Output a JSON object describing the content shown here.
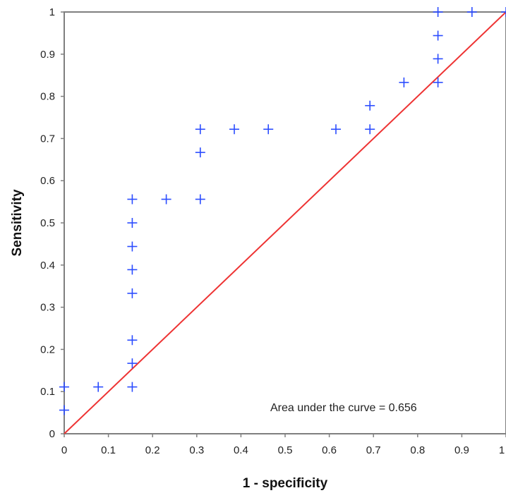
{
  "chart_data": {
    "type": "scatter",
    "title": "",
    "xlabel": "1 - specificity",
    "ylabel": "Sensitivity",
    "xlim": [
      0,
      1
    ],
    "ylim": [
      0,
      1
    ],
    "x_ticks": [
      "0",
      "0.1",
      "0.2",
      "0.3",
      "0.4",
      "0.5",
      "0.6",
      "0.7",
      "0.8",
      "0.9",
      "1"
    ],
    "y_ticks": [
      "0",
      "0.1",
      "0.2",
      "0.3",
      "0.4",
      "0.5",
      "0.6",
      "0.7",
      "0.8",
      "0.9",
      "1"
    ],
    "grid": false,
    "legend": "none",
    "annotation": "Area under the curve = 0.656",
    "points": [
      {
        "x": 0,
        "y": 0.056
      },
      {
        "x": 0,
        "y": 0.111
      },
      {
        "x": 0.077,
        "y": 0.111
      },
      {
        "x": 0.154,
        "y": 0.111
      },
      {
        "x": 0.154,
        "y": 0.167
      },
      {
        "x": 0.154,
        "y": 0.222
      },
      {
        "x": 0.154,
        "y": 0.333
      },
      {
        "x": 0.154,
        "y": 0.389
      },
      {
        "x": 0.154,
        "y": 0.444
      },
      {
        "x": 0.154,
        "y": 0.5
      },
      {
        "x": 0.154,
        "y": 0.556
      },
      {
        "x": 0.231,
        "y": 0.556
      },
      {
        "x": 0.308,
        "y": 0.556
      },
      {
        "x": 0.308,
        "y": 0.667
      },
      {
        "x": 0.308,
        "y": 0.722
      },
      {
        "x": 0.385,
        "y": 0.722
      },
      {
        "x": 0.462,
        "y": 0.722
      },
      {
        "x": 0.615,
        "y": 0.722
      },
      {
        "x": 0.692,
        "y": 0.722
      },
      {
        "x": 0.692,
        "y": 0.778
      },
      {
        "x": 0.769,
        "y": 0.833
      },
      {
        "x": 0.846,
        "y": 0.833
      },
      {
        "x": 0.846,
        "y": 0.889
      },
      {
        "x": 0.846,
        "y": 0.944
      },
      {
        "x": 0.846,
        "y": 1
      },
      {
        "x": 0.923,
        "y": 1
      },
      {
        "x": 1,
        "y": 1
      }
    ],
    "reference_line": {
      "x": [
        0,
        1
      ],
      "y": [
        0,
        1
      ]
    },
    "colors": {
      "points": "#2b4cff",
      "reference_line": "#ee3333",
      "frame": "#7f7f7f",
      "text": "#222222"
    }
  }
}
